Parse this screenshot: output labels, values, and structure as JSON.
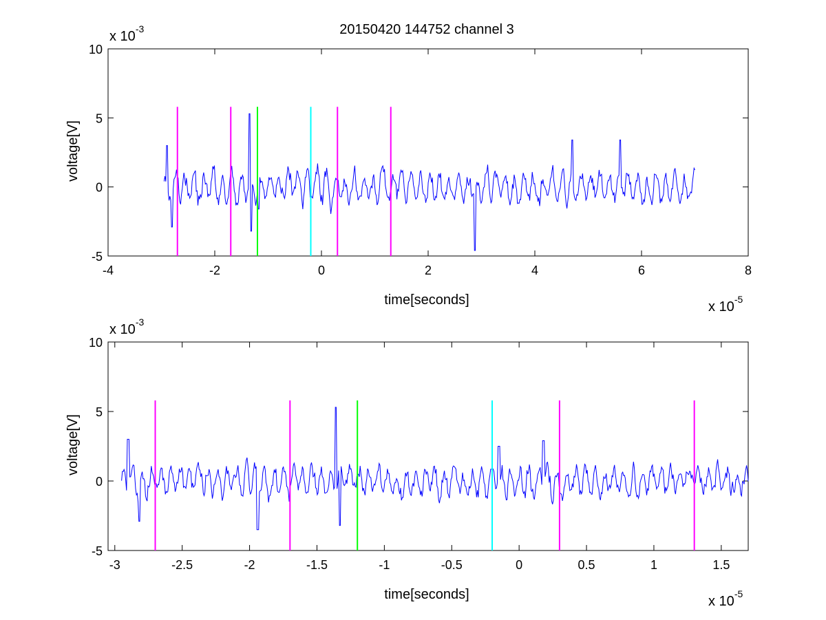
{
  "figure_title": "20150420 144752 channel 3",
  "chart_data": [
    {
      "type": "line",
      "title": "20150420 144752 channel 3",
      "xlabel": "time[seconds]",
      "ylabel": "voltage[V]",
      "xlim": [
        -4,
        8
      ],
      "ylim": [
        -5,
        10
      ],
      "x_scale_exponent": "x 10",
      "x_scale_power": "-5",
      "y_scale_exponent": "x 10",
      "y_scale_power": "-3",
      "xticks": [
        -4,
        -2,
        0,
        2,
        4,
        6,
        8
      ],
      "xtick_labels": [
        "-4",
        "-2",
        "0",
        "2",
        "4",
        "6",
        "8"
      ],
      "yticks": [
        -5,
        0,
        5,
        10
      ],
      "ytick_labels": [
        "-5",
        "0",
        "5",
        "10"
      ],
      "grid": false,
      "series": [
        {
          "color": "#0000ff",
          "x_range": [
            -2.95,
            7.0
          ],
          "seed": 7,
          "amplitude": 1.5,
          "spikes": [
            {
              "x": -1.35,
              "y": 5.3
            },
            {
              "x": -1.32,
              "y": -3.2
            },
            {
              "x": -1.18,
              "y": -1.6
            },
            {
              "x": 2.88,
              "y": -4.6
            },
            {
              "x": 4.7,
              "y": 3.4
            },
            {
              "x": 5.6,
              "y": 3.4
            },
            {
              "x": -2.9,
              "y": 3.0
            },
            {
              "x": -2.8,
              "y": -2.9
            }
          ]
        }
      ],
      "vlines": [
        {
          "x": -2.7,
          "color": "#ff00ff",
          "ymax": 5.8
        },
        {
          "x": -1.7,
          "color": "#ff00ff",
          "ymax": 5.8
        },
        {
          "x": -1.2,
          "color": "#00ff00",
          "ymax": 5.8
        },
        {
          "x": -0.2,
          "color": "#00ffff",
          "ymax": 5.8
        },
        {
          "x": 0.3,
          "color": "#ff00ff",
          "ymax": 5.8
        },
        {
          "x": 1.3,
          "color": "#ff00ff",
          "ymax": 5.8
        }
      ]
    },
    {
      "type": "line",
      "title": "",
      "xlabel": "time[seconds]",
      "ylabel": "voltage[V]",
      "xlim": [
        -3.05,
        1.7
      ],
      "ylim": [
        -5,
        10
      ],
      "x_scale_exponent": "x 10",
      "x_scale_power": "-5",
      "y_scale_exponent": "x 10",
      "y_scale_power": "-3",
      "xticks": [
        -3,
        -2.5,
        -2,
        -1.5,
        -1,
        -0.5,
        0,
        0.5,
        1,
        1.5
      ],
      "xtick_labels": [
        "-3",
        "-2.5",
        "-2",
        "-1.5",
        "-1",
        "-0.5",
        "0",
        "0.5",
        "1",
        "1.5"
      ],
      "yticks": [
        -5,
        0,
        5,
        10
      ],
      "ytick_labels": [
        "-5",
        "0",
        "5",
        "10"
      ],
      "grid": false,
      "series": [
        {
          "color": "#0000ff",
          "x_range": [
            -2.95,
            1.7
          ],
          "seed": 11,
          "amplitude": 1.3,
          "spikes": [
            {
              "x": -2.9,
              "y": 3.0
            },
            {
              "x": -2.82,
              "y": -2.9
            },
            {
              "x": -1.36,
              "y": 5.3
            },
            {
              "x": -1.33,
              "y": -3.2
            },
            {
              "x": -1.94,
              "y": -3.5
            },
            {
              "x": 0.18,
              "y": 2.9
            },
            {
              "x": -0.15,
              "y": 2.5
            }
          ]
        }
      ],
      "vlines": [
        {
          "x": -2.7,
          "color": "#ff00ff",
          "ymax": 5.8
        },
        {
          "x": -1.7,
          "color": "#ff00ff",
          "ymax": 5.8
        },
        {
          "x": -1.2,
          "color": "#00ff00",
          "ymax": 5.8
        },
        {
          "x": -0.2,
          "color": "#00ffff",
          "ymax": 5.8
        },
        {
          "x": 0.3,
          "color": "#ff00ff",
          "ymax": 5.8
        },
        {
          "x": 1.3,
          "color": "#ff00ff",
          "ymax": 5.8
        }
      ]
    }
  ]
}
